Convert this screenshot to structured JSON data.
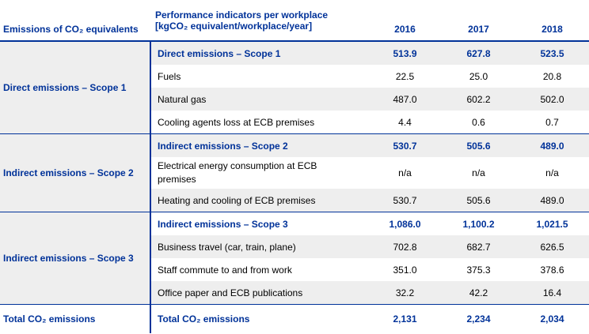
{
  "header": {
    "col0": "Emissions of CO₂ equivalents",
    "col1_line1": "Performance indicators per workplace",
    "col1_line2": "[kgCO₂ equivalent/workplace/year]",
    "years": [
      "2016",
      "2017",
      "2018"
    ]
  },
  "groups": [
    {
      "title": "Direct emissions – Scope 1",
      "rows": [
        {
          "label": "Direct emissions – Scope 1",
          "values": [
            "513.9",
            "627.8",
            "523.5"
          ]
        },
        {
          "label": "Fuels",
          "values": [
            "22.5",
            "25.0",
            "20.8"
          ]
        },
        {
          "label": "Natural gas",
          "values": [
            "487.0",
            "602.2",
            "502.0"
          ]
        },
        {
          "label": "Cooling agents loss at ECB premises",
          "values": [
            "4.4",
            "0.6",
            "0.7"
          ]
        }
      ]
    },
    {
      "title": "Indirect emissions – Scope 2",
      "rows": [
        {
          "label": "Indirect emissions – Scope 2",
          "values": [
            "530.7",
            "505.6",
            "489.0"
          ]
        },
        {
          "label": "Electrical energy consumption at ECB premises",
          "values": [
            "n/a",
            "n/a",
            "n/a"
          ]
        },
        {
          "label": "Heating and cooling of ECB premises",
          "values": [
            "530.7",
            "505.6",
            "489.0"
          ]
        }
      ]
    },
    {
      "title": "Indirect emissions – Scope 3",
      "rows": [
        {
          "label": "Indirect emissions – Scope 3",
          "values": [
            "1,086.0",
            "1,100.2",
            "1,021.5"
          ]
        },
        {
          "label": "Business travel (car, train, plane)",
          "values": [
            "702.8",
            "682.7",
            "626.5"
          ]
        },
        {
          "label": "Staff commute to and from work",
          "values": [
            "351.0",
            "375.3",
            "378.6"
          ]
        },
        {
          "label": "Office paper and ECB publications",
          "values": [
            "32.2",
            "42.2",
            "16.4"
          ]
        }
      ]
    }
  ],
  "total": {
    "group": "Total CO₂ emissions",
    "label": "Total CO₂ emissions",
    "values": [
      "2,131",
      "2,234",
      "2,034"
    ]
  },
  "colors": {
    "accent": "#003299",
    "shade": "#eeeeee"
  }
}
